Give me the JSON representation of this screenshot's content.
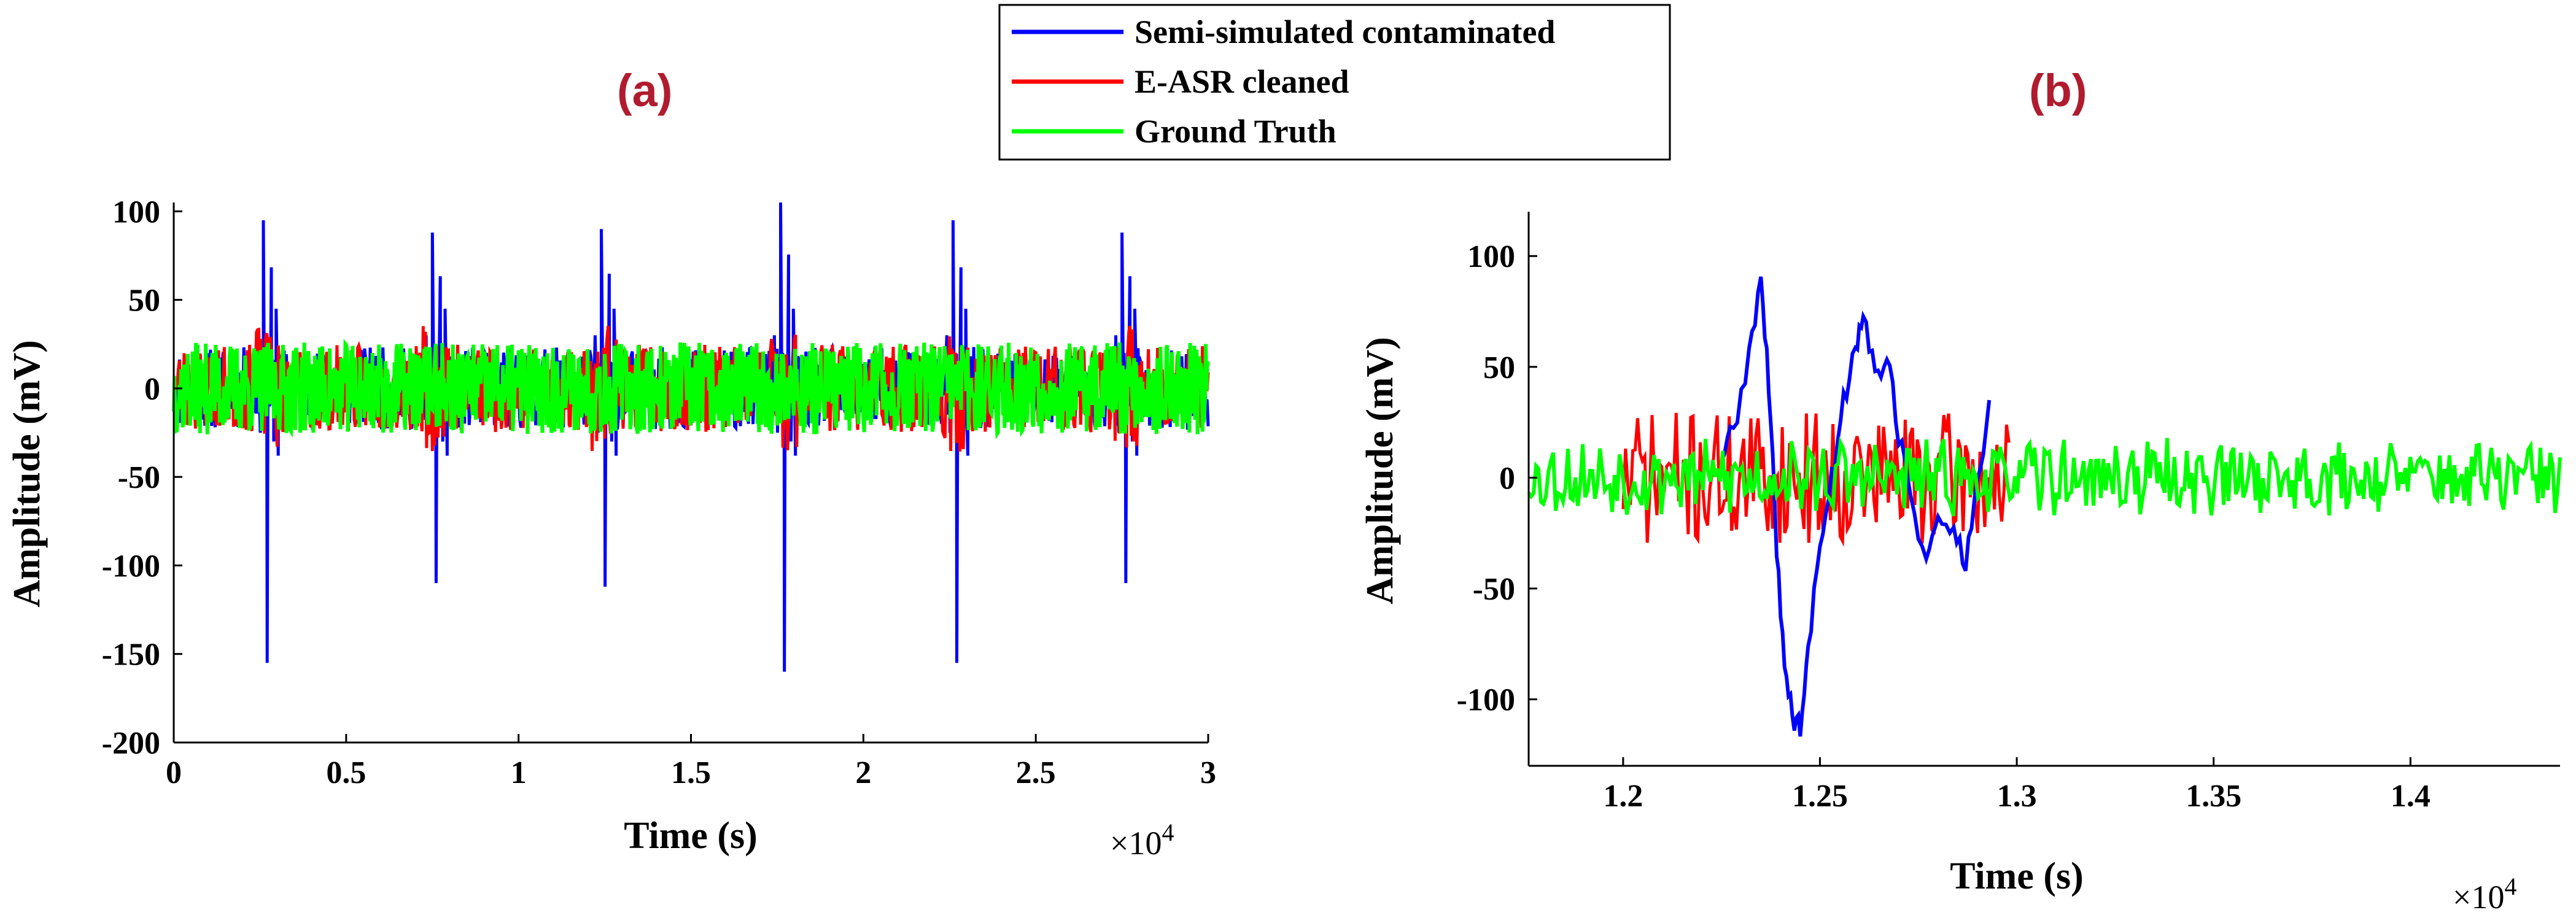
{
  "legend": {
    "items": [
      {
        "label": "Semi-simulated contaminated",
        "color": "#0000ff"
      },
      {
        "label": "E-ASR cleaned",
        "color": "#ff0000"
      },
      {
        "label": "Ground Truth",
        "color": "#00ff00"
      }
    ]
  },
  "chart_data": [
    {
      "type": "line",
      "panel_label": "(a)",
      "xlabel": "Time (s)",
      "ylabel": "Amplitude (mV)",
      "x_multiplier": "×10",
      "x_multiplier_exp": "4",
      "xlim": [
        0,
        30000
      ],
      "ylim": [
        -200,
        105
      ],
      "xticks": [
        0,
        5000,
        10000,
        15000,
        20000,
        25000,
        30000
      ],
      "xtick_labels": [
        "0",
        "0.5",
        "1",
        "1.5",
        "2",
        "2.5",
        "3"
      ],
      "yticks": [
        -200,
        -150,
        -100,
        -50,
        0,
        50,
        100
      ],
      "ytick_labels": [
        "-200",
        "-150",
        "-100",
        "-50",
        "0",
        "50",
        "100"
      ],
      "series": [
        {
          "name": "Semi-simulated contaminated",
          "color": "#0000ff"
        },
        {
          "name": "E-ASR cleaned",
          "color": "#ff0000"
        },
        {
          "name": "Ground Truth",
          "color": "#00ff00"
        }
      ],
      "artifacts": [
        {
          "t": 2600,
          "peak": 95,
          "trough": -155
        },
        {
          "t": 7500,
          "peak": 88,
          "trough": -110
        },
        {
          "t": 12400,
          "peak": 90,
          "trough": -112
        },
        {
          "t": 17600,
          "peak": 105,
          "trough": -160
        },
        {
          "t": 22600,
          "peak": 95,
          "trough": -155
        },
        {
          "t": 27500,
          "peak": 88,
          "trough": -110
        }
      ],
      "noise_amplitude": 26
    },
    {
      "type": "line",
      "panel_label": "(b)",
      "xlabel": "Time (s)",
      "ylabel": "Amplitude (mV)",
      "x_multiplier": "×10",
      "x_multiplier_exp": "4",
      "xlim": [
        11760,
        14380
      ],
      "ylim": [
        -130,
        120
      ],
      "xticks": [
        12000,
        12500,
        13000,
        13500,
        14000
      ],
      "xtick_labels": [
        "1.2",
        "1.25",
        "1.3",
        "1.35",
        "1.4"
      ],
      "yticks": [
        -100,
        -50,
        0,
        50,
        100
      ],
      "ytick_labels": [
        "-100",
        "-50",
        "0",
        "50",
        "100"
      ],
      "series": [
        {
          "name": "Semi-simulated contaminated",
          "color": "#0000ff",
          "x_range": [
            12250,
            12930
          ]
        },
        {
          "name": "E-ASR cleaned",
          "color": "#ff0000",
          "x_range": [
            12000,
            12980
          ]
        },
        {
          "name": "Ground Truth",
          "color": "#00ff00",
          "x_range": [
            11760,
            14380
          ]
        }
      ],
      "blue_shape": [
        [
          12250,
          10
        ],
        [
          12280,
          20
        ],
        [
          12320,
          55
        ],
        [
          12350,
          90
        ],
        [
          12370,
          40
        ],
        [
          12390,
          -30
        ],
        [
          12410,
          -85
        ],
        [
          12430,
          -108
        ],
        [
          12450,
          -112
        ],
        [
          12470,
          -80
        ],
        [
          12500,
          -30
        ],
        [
          12530,
          0
        ],
        [
          12560,
          35
        ],
        [
          12590,
          60
        ],
        [
          12610,
          75
        ],
        [
          12640,
          45
        ],
        [
          12670,
          55
        ],
        [
          12700,
          20
        ],
        [
          12730,
          -10
        ],
        [
          12770,
          -35
        ],
        [
          12800,
          -20
        ],
        [
          12840,
          -25
        ],
        [
          12870,
          -38
        ],
        [
          12900,
          -5
        ],
        [
          12930,
          35
        ]
      ]
    }
  ]
}
